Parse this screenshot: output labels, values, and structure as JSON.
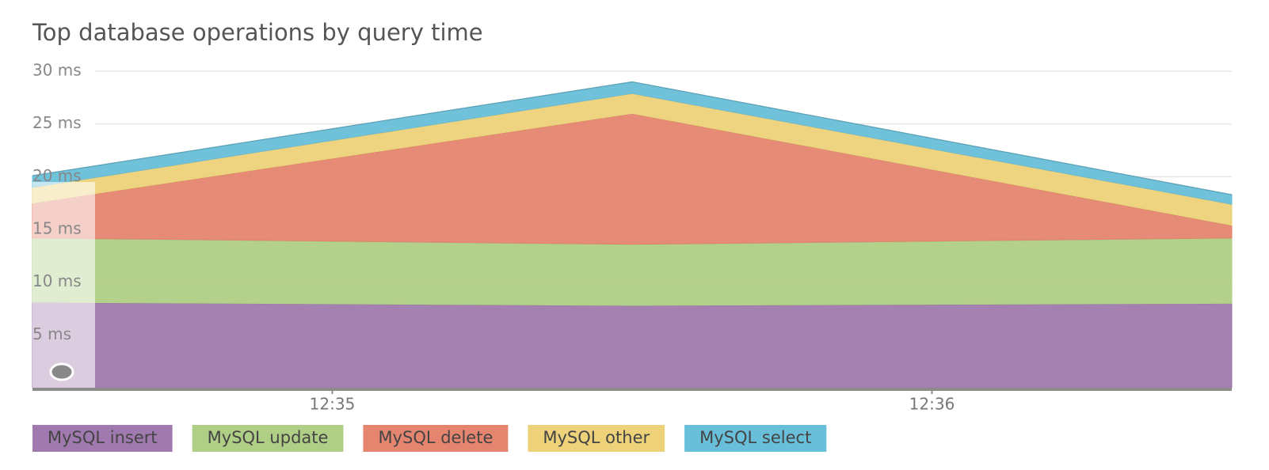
{
  "chart_data": {
    "type": "area",
    "stacked": true,
    "title": "Top database operations by query time",
    "x": [
      754.5,
      755.5,
      756.5
    ],
    "xlim": [
      754.5,
      756.5
    ],
    "xticks": [
      {
        "value": 755,
        "label": "12:35"
      },
      {
        "value": 756,
        "label": "12:36"
      }
    ],
    "ylim": [
      0,
      30
    ],
    "yticks": [
      {
        "value": 5,
        "label": "5 ms"
      },
      {
        "value": 10,
        "label": "10 ms"
      },
      {
        "value": 15,
        "label": "15 ms"
      },
      {
        "value": 20,
        "label": "20 ms"
      },
      {
        "value": 25,
        "label": "25 ms"
      },
      {
        "value": 30,
        "label": "30 ms"
      }
    ],
    "grid": true,
    "legend": "bottom",
    "series": [
      {
        "name": "MySQL insert",
        "color": "#a07aae",
        "values": [
          8.1,
          7.8,
          8.0
        ]
      },
      {
        "name": "MySQL update",
        "color": "#b0cf86",
        "values": [
          6.1,
          5.8,
          6.2
        ]
      },
      {
        "name": "MySQL delete",
        "color": "#e5856f",
        "values": [
          3.3,
          12.4,
          1.2
        ]
      },
      {
        "name": "MySQL other",
        "color": "#edd27a",
        "values": [
          1.5,
          1.9,
          2.0
        ]
      },
      {
        "name": "MySQL select",
        "color": "#68bfd9",
        "values": [
          1.1,
          1.1,
          0.9
        ]
      }
    ]
  }
}
